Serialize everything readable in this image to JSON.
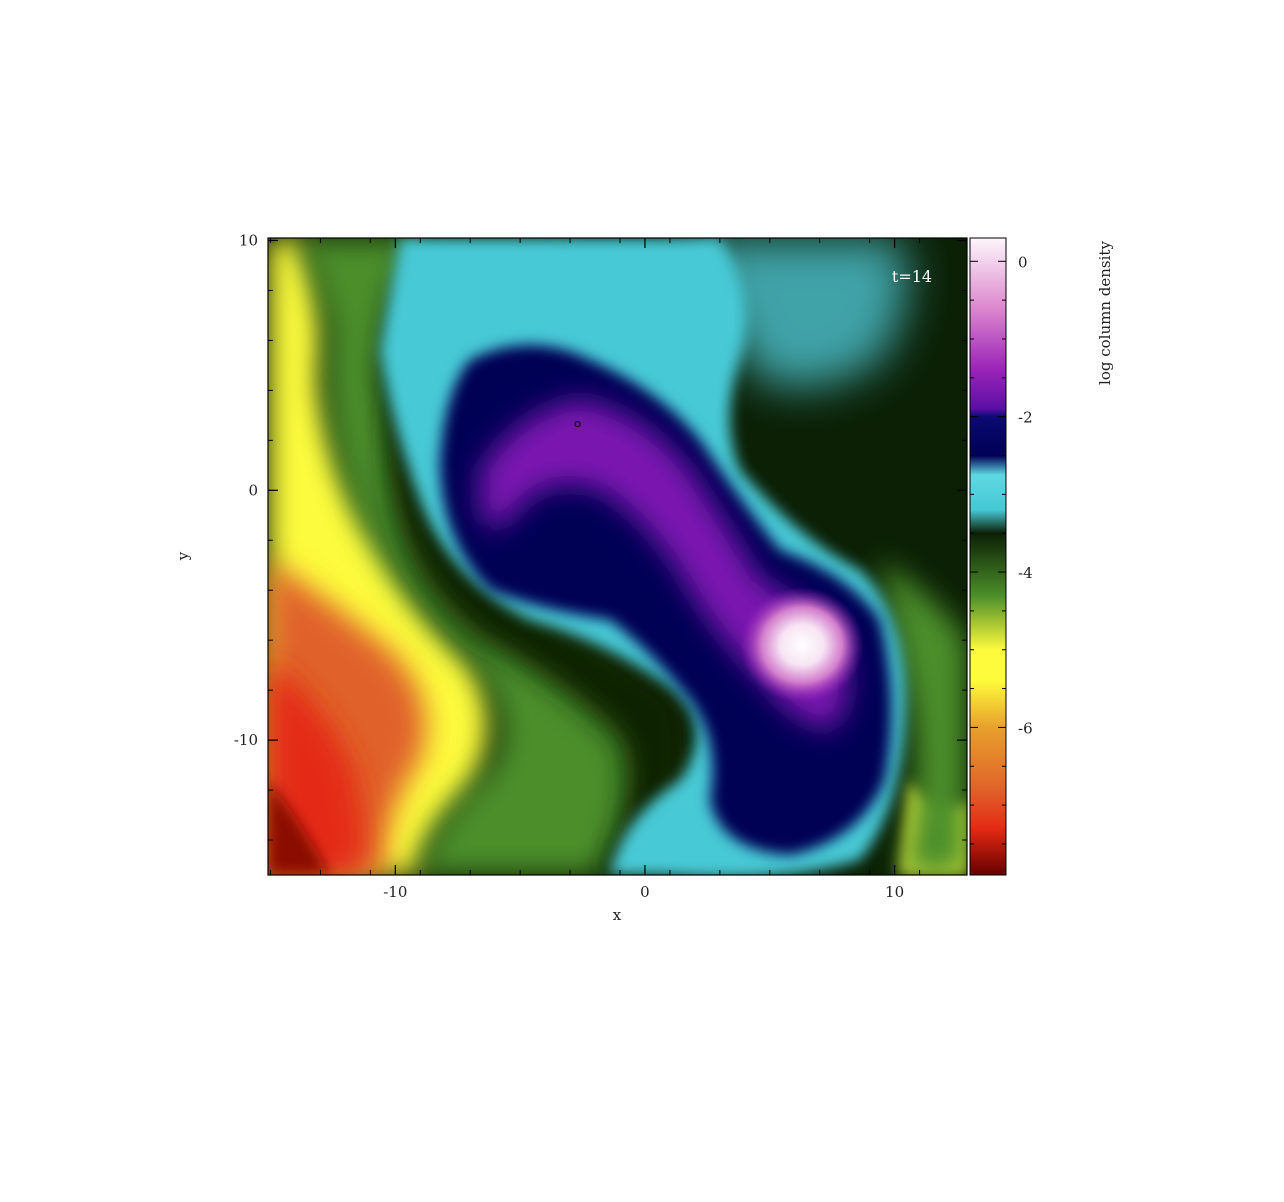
{
  "chart_data": {
    "type": "heatmap",
    "title": "",
    "xlabel": "x",
    "ylabel": "y",
    "xlim": [
      -15.1,
      12.9
    ],
    "ylim": [
      -15.4,
      10.1
    ],
    "x_ticks": [
      -10,
      0,
      10
    ],
    "y_ticks": [
      10,
      0,
      -10
    ],
    "x_tick_labels": [
      "-10",
      "0",
      "10"
    ],
    "y_tick_labels": [
      "10",
      "0",
      "-10"
    ],
    "grid": false,
    "annotation": "t=14",
    "sink_particle": {
      "x": -2.7,
      "y": 2.65
    },
    "colorbar": {
      "label": "log column density",
      "range": [
        -7.9,
        0.3
      ],
      "ticks": [
        0,
        -2,
        -4,
        -6
      ],
      "tick_labels": [
        "0",
        "-2",
        "-4",
        "-6"
      ],
      "colormap_stops": [
        {
          "value": 0.3,
          "color": "#fdf6fb"
        },
        {
          "value": -0.6,
          "color": "#dd88cf"
        },
        {
          "value": -1.4,
          "color": "#9a23b8"
        },
        {
          "value": -1.9,
          "color": "#5a10a5"
        },
        {
          "value": -2.0,
          "color": "#0a0a72"
        },
        {
          "value": -2.5,
          "color": "#000055"
        },
        {
          "value": -2.75,
          "color": "#5fd8e2"
        },
        {
          "value": -3.2,
          "color": "#46c9d6"
        },
        {
          "value": -3.5,
          "color": "#0b2005"
        },
        {
          "value": -4.3,
          "color": "#4c8e2a"
        },
        {
          "value": -5.0,
          "color": "#fdfb3c"
        },
        {
          "value": -5.4,
          "color": "#fdfb3c"
        },
        {
          "value": -6.0,
          "color": "#e8a02c"
        },
        {
          "value": -6.8,
          "color": "#e0622a"
        },
        {
          "value": -7.3,
          "color": "#e42a14"
        },
        {
          "value": -7.9,
          "color": "#650000"
        }
      ]
    },
    "structures": [
      {
        "name": "bright-clump",
        "x": 6.2,
        "y": -6.0,
        "peak_value": 0.2
      },
      {
        "name": "upper-arm",
        "x": -2.0,
        "y": 0.5,
        "peak_value": -1.7
      },
      {
        "name": "lower-lobe",
        "x": 7.0,
        "y": -12.5,
        "peak_value": -2.3
      }
    ]
  }
}
